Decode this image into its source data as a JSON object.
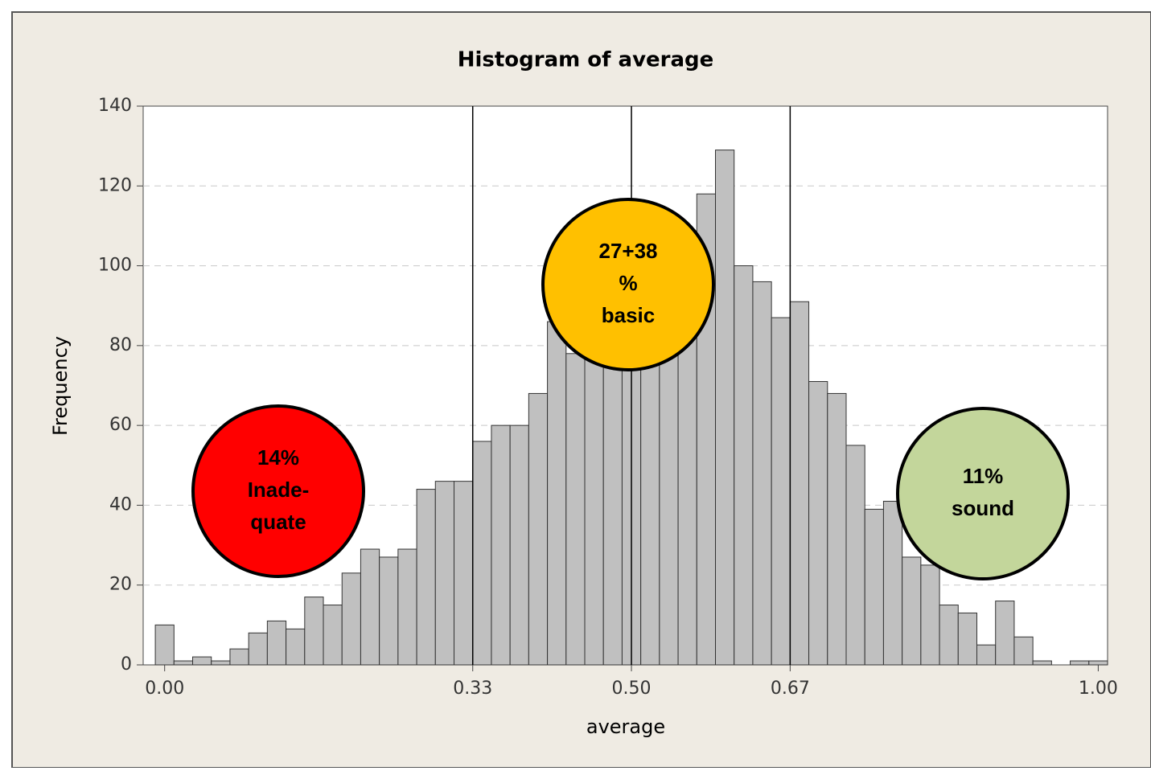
{
  "chart_data": {
    "type": "histogram",
    "title": "Histogram of average",
    "x_label": "average",
    "y_label": "Frequency",
    "bins": [
      -0.01,
      0.01,
      0.03,
      0.05,
      0.07,
      0.09,
      0.11,
      0.13,
      0.15,
      0.17,
      0.19,
      0.21,
      0.23,
      0.25,
      0.27,
      0.29,
      0.31,
      0.33,
      0.35,
      0.37,
      0.39,
      0.41,
      0.43,
      0.45,
      0.47,
      0.49,
      0.51,
      0.53,
      0.55,
      0.57,
      0.59,
      0.61,
      0.63,
      0.65,
      0.67,
      0.69,
      0.71,
      0.73,
      0.75,
      0.77,
      0.79,
      0.81,
      0.83,
      0.85,
      0.87,
      0.89,
      0.91,
      0.93,
      0.95,
      0.97,
      0.99,
      1.01
    ],
    "values": [
      10,
      1,
      2,
      1,
      4,
      8,
      11,
      9,
      17,
      15,
      23,
      29,
      27,
      29,
      44,
      46,
      46,
      56,
      60,
      60,
      68,
      86,
      78,
      80,
      84,
      76,
      82,
      84,
      96,
      118,
      129,
      100,
      96,
      87,
      91,
      71,
      68,
      55,
      39,
      41,
      27,
      25,
      15,
      13,
      5,
      16,
      7,
      1,
      0,
      1,
      1
    ],
    "color": "#c0c0c0",
    "xlim": [
      -0.023,
      1.01
    ],
    "ylim": [
      0,
      140
    ],
    "xticks": [
      {
        "value": 0,
        "label": "0.00"
      },
      0.33,
      {
        "value": 0.5,
        "label": "0.50"
      },
      0.67,
      {
        "value": 1,
        "label": "1.00"
      }
    ],
    "yticks": [
      0,
      20,
      40,
      60,
      80,
      100,
      120,
      140
    ],
    "grid": true,
    "reference_lines": [
      0.33,
      0.5,
      0.67
    ],
    "annotations": [
      {
        "lines": [
          "14%",
          "Inade-",
          "quate"
        ],
        "color": "#ff0000"
      },
      {
        "lines": [
          "27+38",
          "%",
          "basic"
        ],
        "color": "#ffc000"
      },
      {
        "lines": [
          "11%",
          "sound"
        ],
        "color": "#c3d69b"
      }
    ]
  }
}
